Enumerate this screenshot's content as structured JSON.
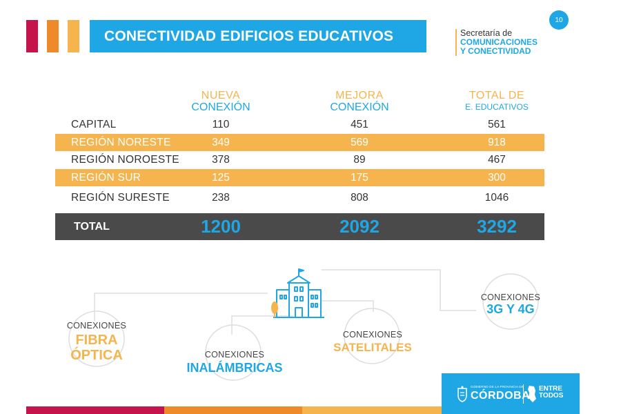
{
  "header": {
    "title": "CONECTIVIDAD EDIFICIOS EDUCATIVOS",
    "page_number": "10",
    "secretaria_line1": "Secretaría de",
    "secretaria_line2": "COMUNICACIONES",
    "secretaria_line3": "Y CONECTIVIDAD"
  },
  "table": {
    "columns": [
      {
        "top": "NUEVA",
        "bottom": "CONEXIÓN"
      },
      {
        "top": "MEJORA",
        "bottom": "CONEXIÓN"
      },
      {
        "top": "TOTAL DE",
        "bottom": "E. EDUCATIVOS"
      }
    ],
    "rows": [
      {
        "name": "CAPITAL",
        "values": [
          "110",
          "451",
          "561"
        ]
      },
      {
        "name": "REGIÓN NORESTE",
        "values": [
          "349",
          "569",
          "918"
        ]
      },
      {
        "name": "REGIÓN NOROESTE",
        "values": [
          "378",
          "89",
          "467"
        ]
      },
      {
        "name": "REGIÓN SUR",
        "values": [
          "125",
          "175",
          "300"
        ]
      },
      {
        "name": "REGIÓN SURESTE",
        "values": [
          "238",
          "808",
          "1046"
        ]
      }
    ],
    "total": {
      "name": "TOTAL",
      "values": [
        "1200",
        "2092",
        "3292"
      ]
    }
  },
  "connections": {
    "fibra": {
      "small": "CONEXIONES",
      "big1": "FIBRA",
      "big2": "ÓPTICA"
    },
    "inalambricas": {
      "small": "CONEXIONES",
      "big": "INALÁMBRICAS"
    },
    "satelitales": {
      "small": "CONEXIONES",
      "big": "SATELITALES"
    },
    "movil": {
      "small": "CONEXIONES",
      "big": "3G Y 4G"
    }
  },
  "footer": {
    "gobierno": "GOBIERNO DE LA PROVINCIA DE",
    "cordoba": "CÓRDOBA",
    "entre": "ENTRE",
    "todos": "TODOS"
  },
  "colors": {
    "blue": "#1ea7e4",
    "yellow": "#f5b44e",
    "orange": "#ef8a2a",
    "crimson": "#c4144b",
    "dark": "#4a4a4a"
  },
  "icons": [
    "school-building-icon",
    "province-crest-icon",
    "province-map-icon"
  ]
}
